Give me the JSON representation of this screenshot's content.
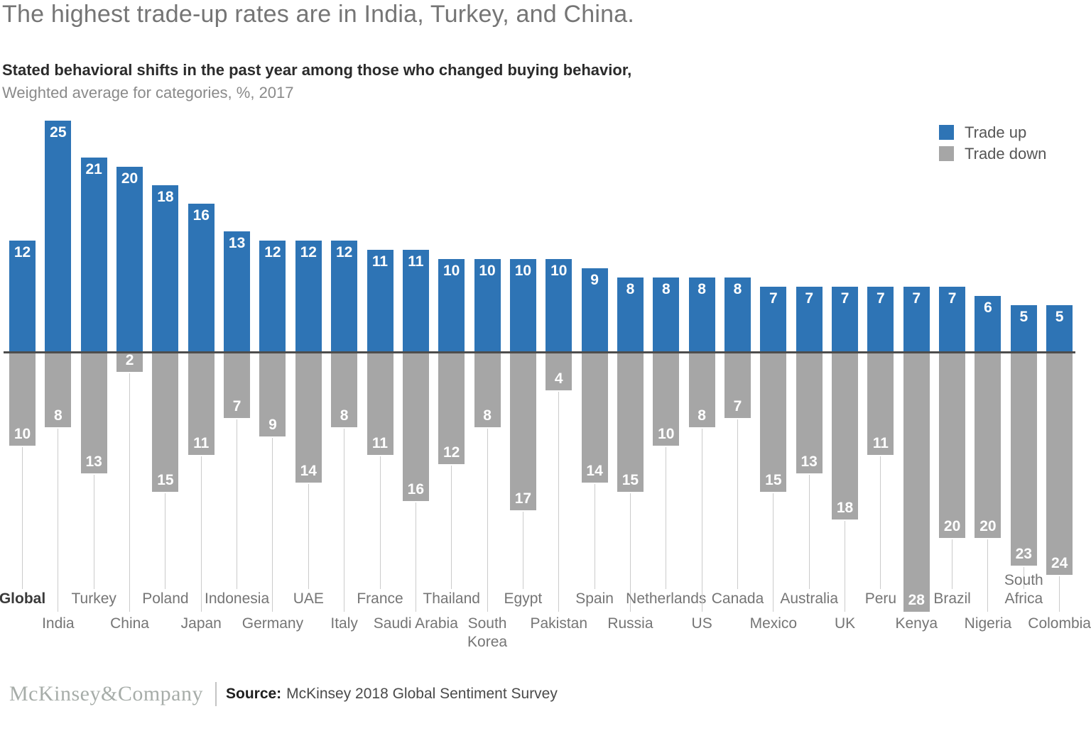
{
  "title": "The highest trade-up rates are in India, Turkey, and China.",
  "subtitle_bold": "Stated behavioral shifts in the past year among those who changed buying behavior,",
  "subtitle": "Weighted average for categories, %, 2017",
  "legend": {
    "trade_up": "Trade up",
    "trade_down": "Trade down"
  },
  "colors": {
    "trade_up": "#2e74b5",
    "trade_down": "#a6a6a6",
    "baseline": "#4d4d4d",
    "leader_line": "#cbcbcb"
  },
  "footer": {
    "logo": "McKinsey&Company",
    "source_label": "Source:",
    "source_text": "McKinsey 2018 Global Sentiment Survey"
  },
  "chart_data": {
    "type": "bar",
    "subtype": "diverging",
    "unit": "%",
    "title": "Stated behavioral shifts in the past year among those who changed buying behavior, Weighted average for categories, %, 2017",
    "legend_position": "top-right",
    "grid": false,
    "value_labels": "inside-end-white",
    "emphasized_category": "Global",
    "wrapped_labels": [
      "South Korea",
      "South Africa"
    ],
    "categories": [
      "Global",
      "India",
      "Turkey",
      "China",
      "Poland",
      "Japan",
      "Indonesia",
      "Germany",
      "UAE",
      "Italy",
      "France",
      "Saudi Arabia",
      "Thailand",
      "South Korea",
      "Egypt",
      "Pakistan",
      "Spain",
      "Russia",
      "Netherlands",
      "US",
      "Canada",
      "Mexico",
      "Australia",
      "UK",
      "Peru",
      "Kenya",
      "Brazil",
      "Nigeria",
      "South Africa",
      "Colombia"
    ],
    "series": [
      {
        "name": "Trade up",
        "direction": "up",
        "color": "#2e74b5",
        "values": [
          12,
          25,
          21,
          20,
          18,
          16,
          13,
          12,
          12,
          12,
          11,
          11,
          10,
          10,
          10,
          10,
          9,
          8,
          8,
          8,
          8,
          7,
          7,
          7,
          7,
          7,
          7,
          6,
          5,
          5
        ]
      },
      {
        "name": "Trade down",
        "direction": "down",
        "color": "#a6a6a6",
        "values": [
          10,
          8,
          13,
          2,
          15,
          11,
          7,
          9,
          14,
          8,
          11,
          16,
          12,
          8,
          17,
          4,
          14,
          15,
          10,
          8,
          7,
          15,
          13,
          18,
          11,
          28,
          20,
          20,
          23,
          24
        ]
      }
    ]
  }
}
